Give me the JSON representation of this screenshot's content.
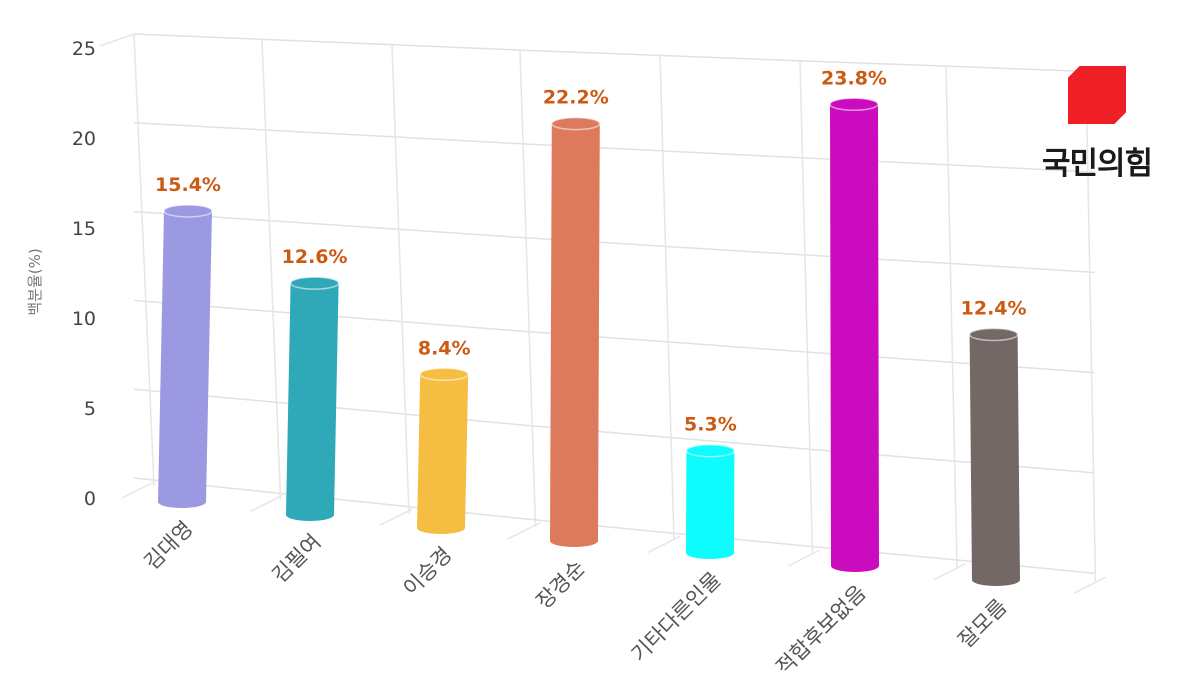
{
  "chart_data": {
    "type": "bar",
    "ylabel": "백분율(%)",
    "ylim": [
      0,
      25
    ],
    "yticks": [
      0,
      5,
      10,
      15,
      20,
      25
    ],
    "grid": true,
    "categories": [
      "김대영",
      "김필여",
      "이승경",
      "장경순",
      "기타다른인물",
      "적합후보없음",
      "잘모름"
    ],
    "values": [
      15.4,
      12.6,
      8.4,
      22.2,
      5.3,
      23.8,
      12.4
    ],
    "value_labels": [
      "15.4%",
      "12.6%",
      "8.4%",
      "22.2%",
      "5.3%",
      "23.8%",
      "12.4%"
    ],
    "colors": [
      "#9b99e2",
      "#2fa9b8",
      "#f5bd42",
      "#de7a5c",
      "#0ffcff",
      "#ca0cbe",
      "#736866"
    ]
  },
  "logo": {
    "text": "국민의힘",
    "color": "#ee1f26"
  }
}
